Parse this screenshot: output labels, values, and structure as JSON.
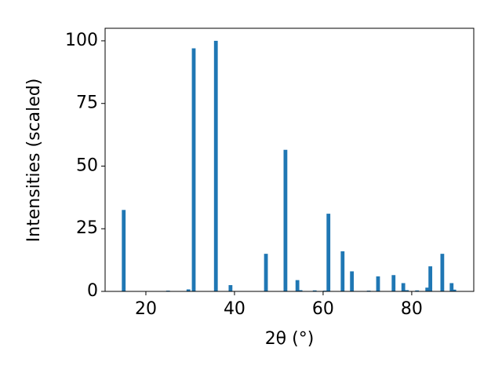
{
  "chart_data": {
    "type": "bar",
    "x_label": "2θ (°)",
    "y_label": "Intensities (scaled)",
    "x": [
      15.0,
      25.0,
      29.6,
      30.8,
      35.8,
      39.1,
      47.1,
      51.5,
      54.2,
      54.9,
      58.1,
      60.4,
      61.2,
      64.4,
      66.5,
      70.3,
      72.4,
      75.9,
      78.1,
      78.9,
      81.2,
      83.5,
      84.2,
      86.9,
      89.0,
      89.6
    ],
    "values": [
      32.5,
      0.3,
      0.8,
      97,
      100,
      2.5,
      15,
      56.5,
      4.5,
      0.5,
      0.4,
      0.3,
      31,
      16,
      8,
      0.3,
      6,
      6.5,
      3.3,
      0.5,
      0.4,
      1.5,
      10,
      15,
      3.3,
      0.7
    ],
    "color": "#1f77b4",
    "xlim": [
      10.8,
      94.0
    ],
    "xticks": [
      20,
      40,
      60,
      80
    ],
    "ylim": [
      0,
      105
    ],
    "yticks": [
      0,
      25,
      50,
      75,
      100
    ]
  }
}
